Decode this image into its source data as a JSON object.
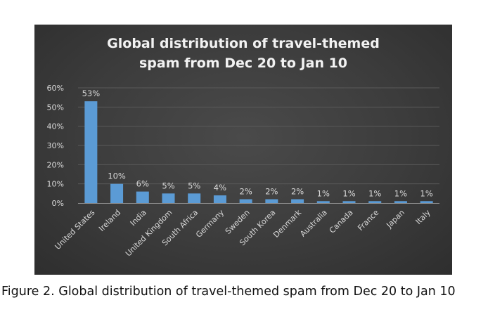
{
  "caption": "Figure 2. Global distribution of travel-themed spam from Dec 20 to Jan 10",
  "chart_data": {
    "type": "bar",
    "title_lines": [
      "Global distribution of travel-themed",
      "spam from Dec 20 to Jan 10"
    ],
    "categories": [
      "United States",
      "Ireland",
      "India",
      "United Kingdom",
      "South Africa",
      "Germany",
      "Sweden",
      "South Korea",
      "Denmark",
      "Australia",
      "Canada",
      "France",
      "Japan",
      "Italy"
    ],
    "values": [
      53,
      10,
      6,
      5,
      5,
      4,
      2,
      2,
      2,
      1,
      1,
      1,
      1,
      1
    ],
    "data_labels": [
      "53%",
      "10%",
      "6%",
      "5%",
      "5%",
      "4%",
      "2%",
      "2%",
      "2%",
      "1%",
      "1%",
      "1%",
      "1%",
      "1%"
    ],
    "y_ticks": [
      0,
      10,
      20,
      30,
      40,
      50,
      60
    ],
    "y_tick_labels": [
      "0%",
      "10%",
      "20%",
      "30%",
      "40%",
      "50%",
      "60%"
    ],
    "ylim": [
      0,
      60
    ],
    "grid": true,
    "legend": "none",
    "colors": {
      "bar": "#5b9bd5",
      "background": "#404040",
      "text": "#d9d9d9",
      "title": "#f2f2f2",
      "gridline": "#5a5a5a",
      "axis": "#8c8c8c"
    }
  }
}
